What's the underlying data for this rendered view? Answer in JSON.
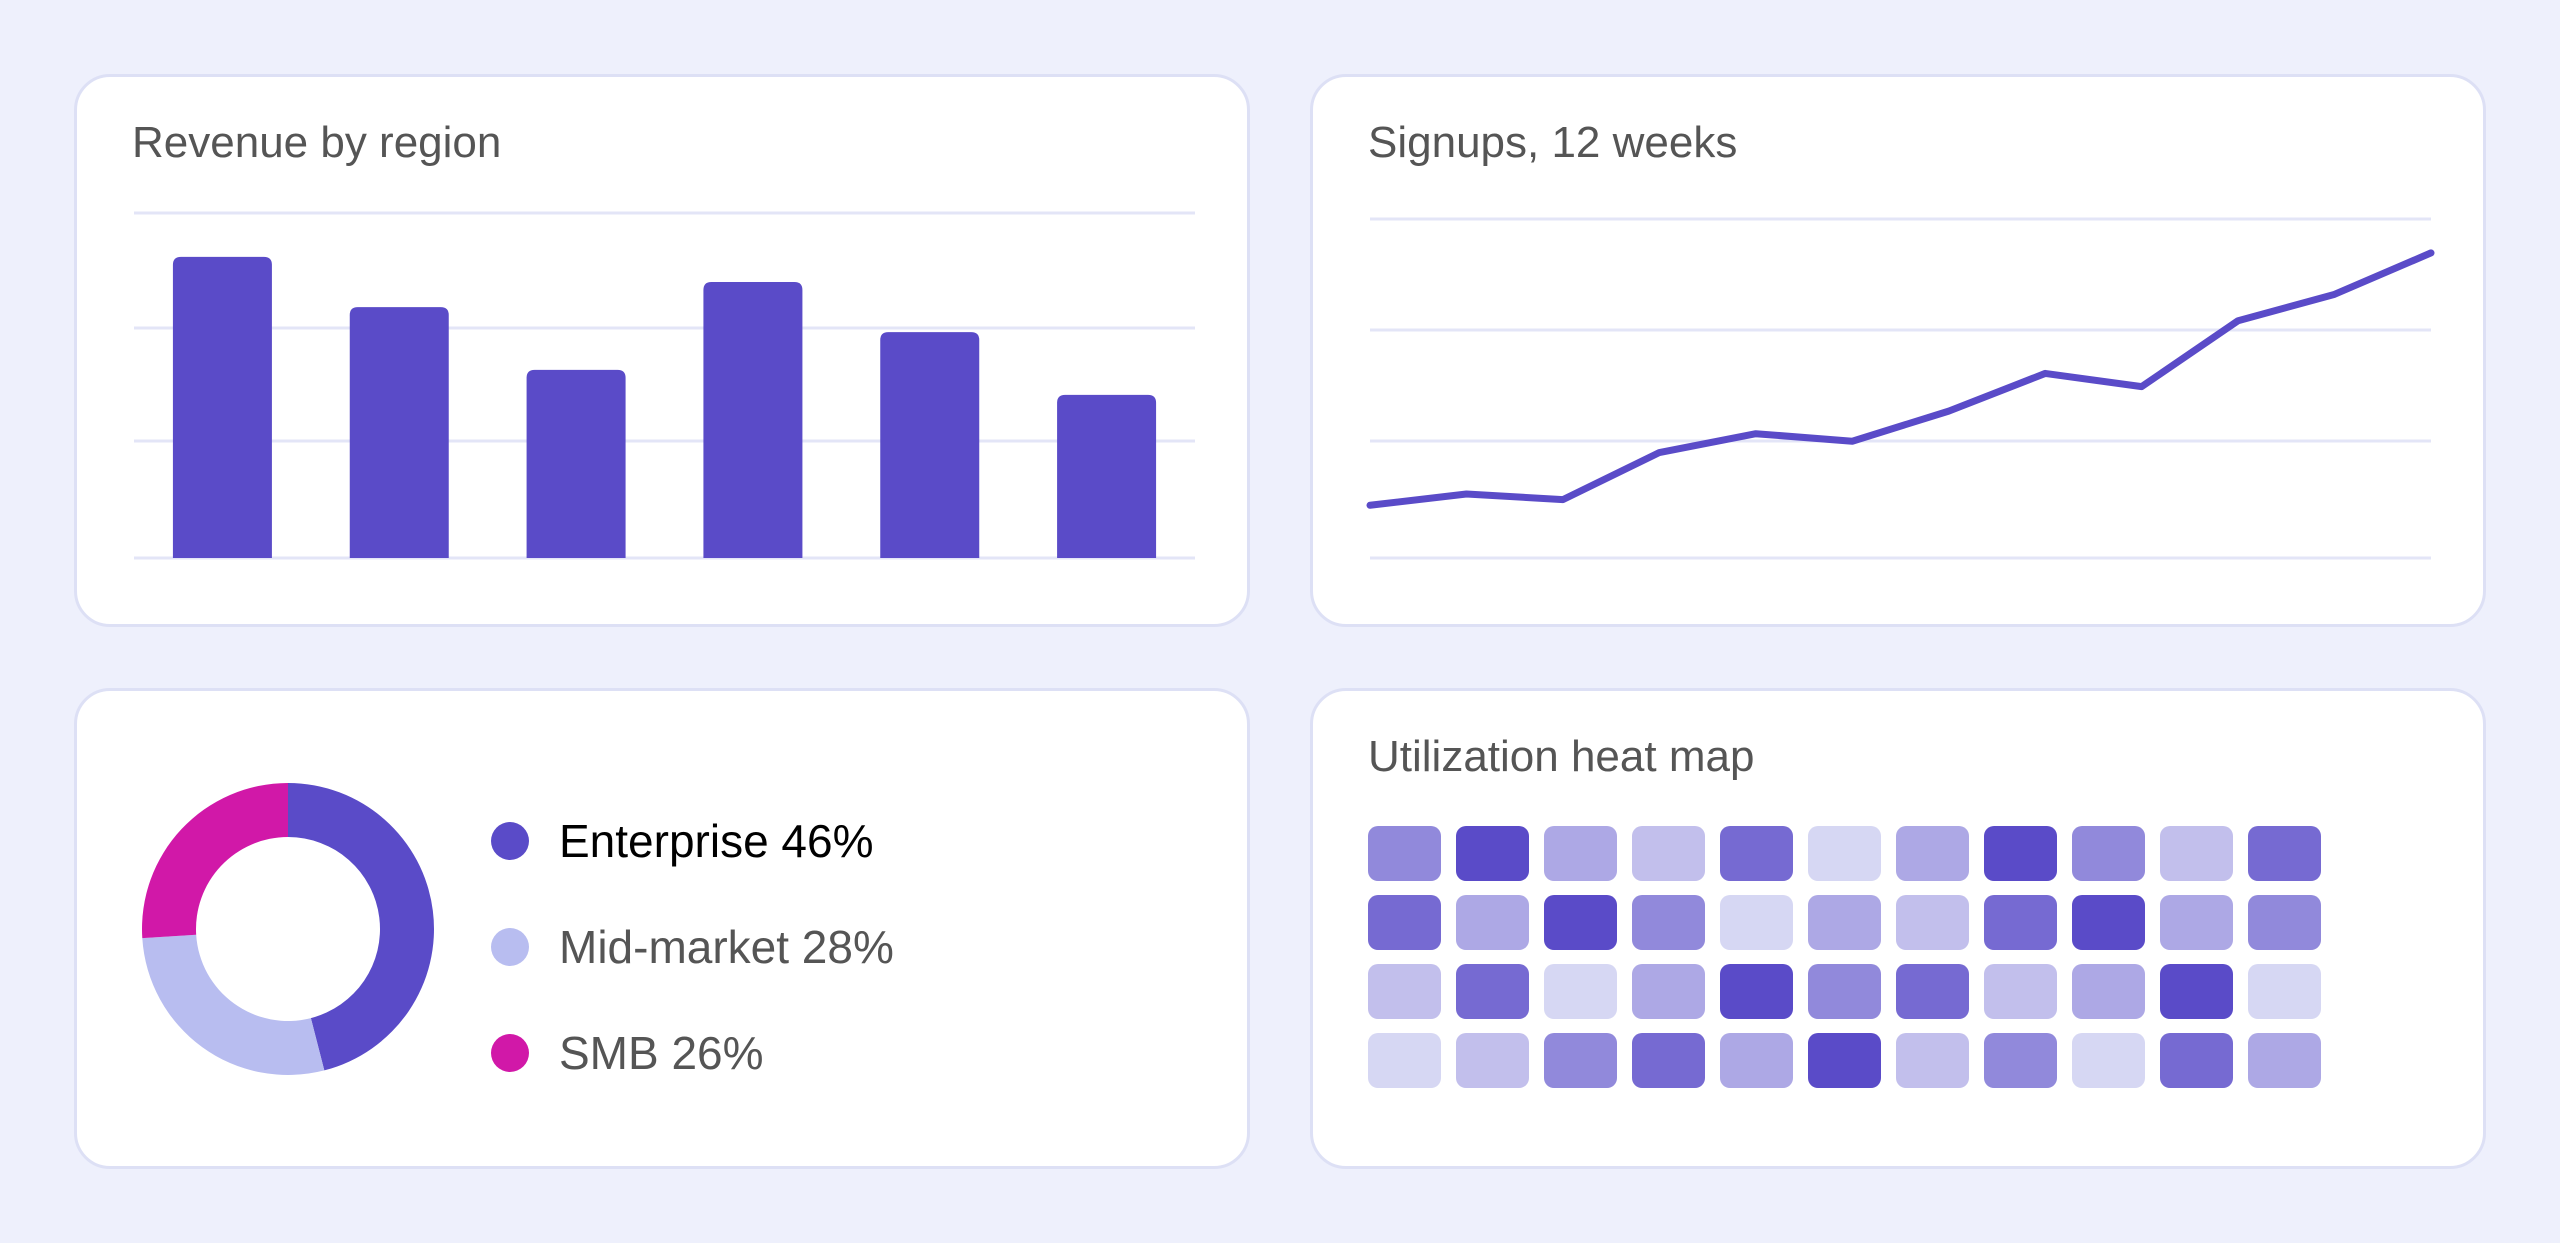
{
  "colors": {
    "background": "#eef0fc",
    "card": "#ffffff",
    "accent": "#5a4bc8",
    "gridline": "#e3e5f7",
    "title_text": "#555555"
  },
  "chart_data": [
    {
      "id": "revenue-by-region",
      "type": "bar",
      "title": "Revenue by region",
      "categories": [
        "",
        "",
        "",
        "",
        "",
        ""
      ],
      "values": [
        96,
        80,
        60,
        88,
        72,
        52
      ],
      "ylim": [
        0,
        110
      ],
      "grid": true,
      "color": "#5a4bc8"
    },
    {
      "id": "signups-12-weeks",
      "type": "line",
      "title": "Signups, 12 weeks",
      "x": [
        1,
        2,
        3,
        4,
        5,
        6,
        7,
        8,
        9,
        10,
        11,
        12
      ],
      "values": [
        14,
        17,
        15.5,
        28,
        33,
        31,
        39,
        49,
        45.5,
        63,
        70,
        81
      ],
      "ylim": [
        0,
        90
      ],
      "grid": true,
      "color": "#5a4bc8"
    },
    {
      "id": "customer-segments",
      "type": "pie",
      "title": "",
      "donut": true,
      "slices": [
        {
          "label": "Enterprise 46%",
          "value": 46,
          "color": "#5a4bc8"
        },
        {
          "label": "Mid-market 28%",
          "value": 28,
          "color": "#b8bdf0"
        },
        {
          "label": "SMB 26%",
          "value": 26,
          "color": "#d118a8"
        }
      ],
      "legend": "right"
    },
    {
      "id": "utilization-heat-map",
      "type": "heatmap",
      "title": "Utilization heat map",
      "rows": 4,
      "cols": 11,
      "values": [
        [
          0.6,
          1.0,
          0.4,
          0.25,
          0.8,
          0.1,
          0.4,
          1.0,
          0.6,
          0.25,
          0.8
        ],
        [
          0.8,
          0.4,
          1.0,
          0.6,
          0.1,
          0.4,
          0.25,
          0.8,
          1.0,
          0.4,
          0.6
        ],
        [
          0.25,
          0.8,
          0.1,
          0.4,
          1.0,
          0.6,
          0.8,
          0.25,
          0.4,
          1.0,
          0.1
        ],
        [
          0.1,
          0.25,
          0.6,
          0.8,
          0.4,
          1.0,
          0.25,
          0.6,
          0.1,
          0.8,
          0.4
        ]
      ],
      "color_scale": [
        "#e4e6f8",
        "#5a4bc8"
      ]
    }
  ]
}
